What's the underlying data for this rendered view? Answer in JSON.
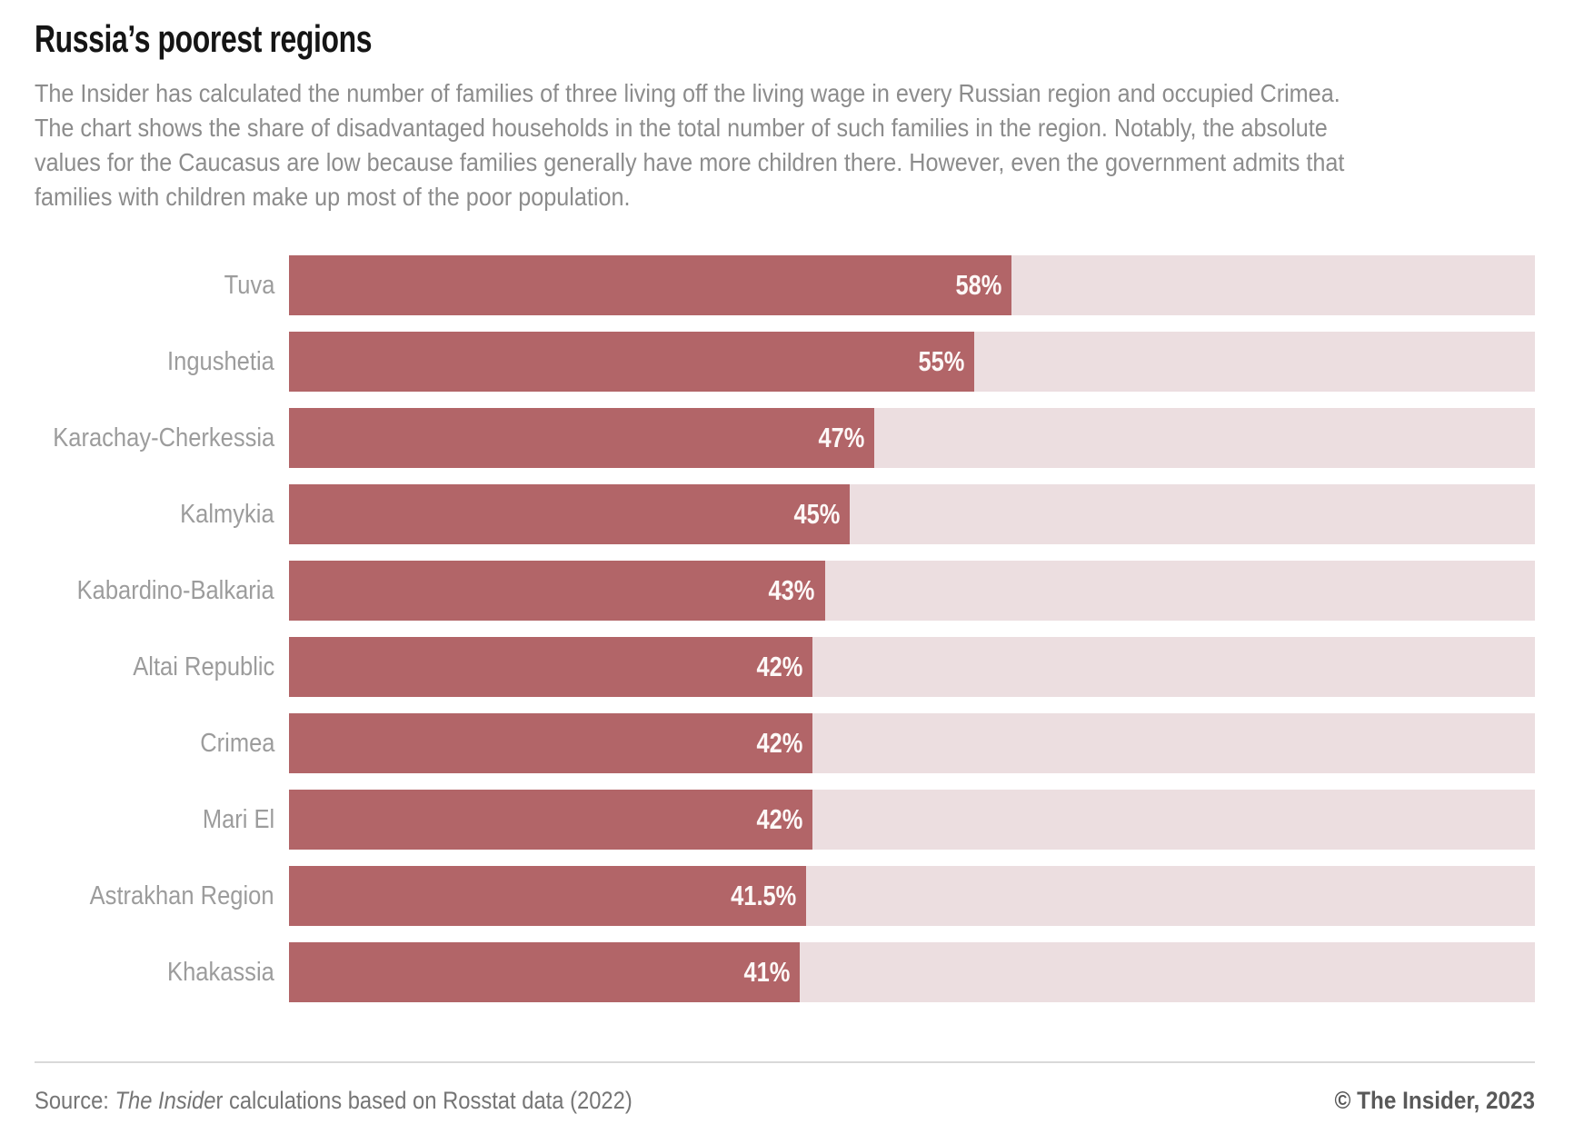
{
  "header": {
    "title": "Russia’s poorest regions",
    "subtitle_lines": [
      "The Insider has calculated the number of families of three living off the living wage in every Russian region and occupied Crimea.",
      "The chart shows the share of disadvantaged households in the total number of such families in the region. Notably, the absolute",
      "values for the Caucasus are low because families generally have more children there. However, even the government admits that",
      "families with children make up most of the poor population."
    ]
  },
  "chart_data": {
    "type": "bar",
    "orientation": "horizontal",
    "title": "Russia’s poorest regions",
    "categories": [
      "Tuva",
      "Ingushetia",
      "Karachay-Cherkessia",
      "Kalmykia",
      "Kabardino-Balkaria",
      "Altai Republic",
      "Crimea",
      "Mari El",
      "Astrakhan Region",
      "Khakassia"
    ],
    "values": [
      58,
      55,
      47,
      45,
      43,
      42,
      42,
      42,
      41.5,
      41
    ],
    "value_labels": [
      "58%",
      "55%",
      "47%",
      "45%",
      "43%",
      "42%",
      "42%",
      "42%",
      "41.5%",
      "41%"
    ],
    "xlabel": "",
    "ylabel": "",
    "xlim": [
      0,
      100
    ],
    "grid": false,
    "legend": false,
    "value_label_position": "inside-end"
  },
  "footer": {
    "source_prefix": "Source: ",
    "source_publication_italic": "The Inside",
    "source_rest": "r calculations based on Rosstat data (2022)",
    "copyright": "© The Insider, 2023"
  },
  "colors": {
    "bar_fill": "#b26568",
    "bar_track": "#ecdee0",
    "title_text": "#151515",
    "subtitle_text": "#8c8c8c",
    "label_text": "#9c9c9c",
    "value_text": "#fdf8f7",
    "source_text": "#757575",
    "copyright_text": "#595959",
    "divider": "#d9d9d9"
  }
}
